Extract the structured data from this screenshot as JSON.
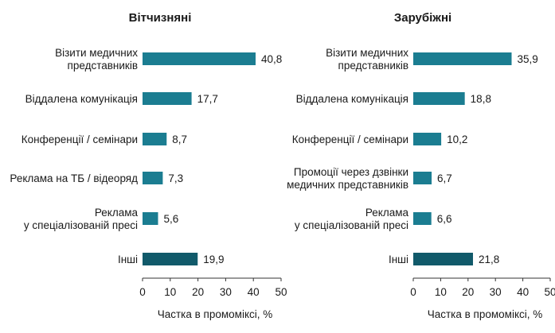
{
  "chart_data": [
    {
      "type": "bar",
      "orientation": "horizontal",
      "title": "Вітчизняні",
      "categories": [
        [
          "Візити медичних",
          "представників"
        ],
        [
          "Віддалена комунікація"
        ],
        [
          "Конференції / семінари"
        ],
        [
          "Реклама на ТБ / відеоряд"
        ],
        [
          "Реклама",
          "у спеціалізованій пресі"
        ],
        [
          "Інші"
        ]
      ],
      "values": [
        40.8,
        17.7,
        8.7,
        7.3,
        5.6,
        19.9
      ],
      "value_labels": [
        "40,8",
        "17,7",
        "8,7",
        "7,3",
        "5,6",
        "19,9"
      ],
      "highlight_last": true,
      "xlabel": "Частка в промоміксі, %",
      "xlim": [
        0,
        50
      ],
      "xticks": [
        0,
        10,
        20,
        30,
        40,
        50
      ],
      "grid": false
    },
    {
      "type": "bar",
      "orientation": "horizontal",
      "title": "Зарубіжні",
      "categories": [
        [
          "Візити медичних",
          "представників"
        ],
        [
          "Віддалена комунікація"
        ],
        [
          "Конференції / семінари"
        ],
        [
          "Промоції через дзвінки",
          "медичних представників"
        ],
        [
          "Реклама",
          "у спеціалізованій пресі"
        ],
        [
          "Інші"
        ]
      ],
      "values": [
        35.9,
        18.8,
        10.2,
        6.7,
        6.6,
        21.8
      ],
      "value_labels": [
        "35,9",
        "18,8",
        "10,2",
        "6,7",
        "6,6",
        "21,8"
      ],
      "highlight_last": true,
      "xlabel": "Частка в промоміксі, %",
      "xlim": [
        0,
        50
      ],
      "xticks": [
        0,
        10,
        20,
        30,
        40,
        50
      ],
      "grid": false
    }
  ],
  "colors": {
    "bar": "#1b7d91",
    "bar_other": "#115a6a",
    "text": "#1a1a1a",
    "axis": "#333333"
  }
}
